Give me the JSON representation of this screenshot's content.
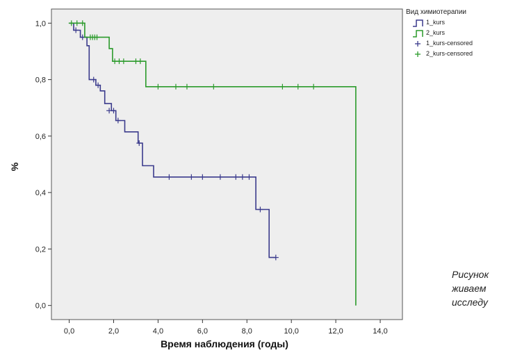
{
  "chart_data": {
    "type": "line",
    "subtype": "kaplan-meier-step",
    "title": "",
    "xlabel": "Время наблюдения (годы)",
    "ylabel": "%",
    "xlim": [
      -0.8,
      15.0
    ],
    "ylim": [
      -0.05,
      1.05
    ],
    "xticks": [
      0.0,
      2.0,
      4.0,
      6.0,
      8.0,
      10.0,
      12.0,
      14.0
    ],
    "xtick_labels": [
      "0,0",
      "2,0",
      "4,0",
      "6,0",
      "8,0",
      "10,0",
      "12,0",
      "14,0"
    ],
    "yticks": [
      0.0,
      0.2,
      0.4,
      0.6,
      0.8,
      1.0
    ],
    "ytick_labels": [
      "0,0",
      "0,2",
      "0,4",
      "0,6",
      "0,8",
      "1,0"
    ],
    "grid": false,
    "background": "#eeeeee",
    "legend": {
      "title": "Вид химиотерапии",
      "position": "top-right",
      "entries": [
        {
          "label": "1_kurs",
          "symbol": "step",
          "color": "#3a3a8c"
        },
        {
          "label": "2_kurs",
          "symbol": "step",
          "color": "#2a9a2a"
        },
        {
          "label": "1_kurs-censored",
          "symbol": "plus",
          "color": "#3a3a8c"
        },
        {
          "label": "2_kurs-censored",
          "symbol": "plus",
          "color": "#2a9a2a"
        }
      ]
    },
    "series": [
      {
        "name": "1_kurs",
        "color": "#3a3a8c",
        "steps": [
          [
            0.0,
            1.0
          ],
          [
            0.2,
            1.0
          ],
          [
            0.2,
            0.975
          ],
          [
            0.5,
            0.975
          ],
          [
            0.5,
            0.95
          ],
          [
            0.8,
            0.95
          ],
          [
            0.8,
            0.92
          ],
          [
            0.9,
            0.92
          ],
          [
            0.9,
            0.8
          ],
          [
            1.2,
            0.8
          ],
          [
            1.2,
            0.78
          ],
          [
            1.4,
            0.78
          ],
          [
            1.4,
            0.76
          ],
          [
            1.6,
            0.76
          ],
          [
            1.6,
            0.715
          ],
          [
            1.9,
            0.715
          ],
          [
            1.9,
            0.69
          ],
          [
            2.1,
            0.69
          ],
          [
            2.1,
            0.655
          ],
          [
            2.5,
            0.655
          ],
          [
            2.5,
            0.615
          ],
          [
            3.1,
            0.615
          ],
          [
            3.1,
            0.575
          ],
          [
            3.3,
            0.575
          ],
          [
            3.3,
            0.495
          ],
          [
            3.8,
            0.495
          ],
          [
            3.8,
            0.455
          ],
          [
            8.4,
            0.455
          ],
          [
            8.4,
            0.34
          ],
          [
            9.0,
            0.34
          ],
          [
            9.0,
            0.17
          ],
          [
            9.3,
            0.17
          ]
        ],
        "censored": [
          [
            0.3,
            0.975
          ],
          [
            0.6,
            0.95
          ],
          [
            1.1,
            0.8
          ],
          [
            1.3,
            0.78
          ],
          [
            1.8,
            0.69
          ],
          [
            2.0,
            0.69
          ],
          [
            2.2,
            0.655
          ],
          [
            3.15,
            0.575
          ],
          [
            4.5,
            0.455
          ],
          [
            5.5,
            0.455
          ],
          [
            6.0,
            0.455
          ],
          [
            6.8,
            0.455
          ],
          [
            7.5,
            0.455
          ],
          [
            7.8,
            0.455
          ],
          [
            8.1,
            0.455
          ],
          [
            8.6,
            0.34
          ],
          [
            9.3,
            0.17
          ]
        ]
      },
      {
        "name": "2_kurs",
        "color": "#2a9a2a",
        "steps": [
          [
            0.0,
            1.0
          ],
          [
            0.7,
            1.0
          ],
          [
            0.7,
            0.95
          ],
          [
            1.8,
            0.95
          ],
          [
            1.8,
            0.91
          ],
          [
            1.95,
            0.91
          ],
          [
            1.95,
            0.865
          ],
          [
            3.45,
            0.865
          ],
          [
            3.45,
            0.775
          ],
          [
            12.9,
            0.775
          ],
          [
            12.9,
            0.0
          ]
        ],
        "censored": [
          [
            0.1,
            1.0
          ],
          [
            0.35,
            1.0
          ],
          [
            0.6,
            1.0
          ],
          [
            0.95,
            0.95
          ],
          [
            1.05,
            0.95
          ],
          [
            1.15,
            0.95
          ],
          [
            1.25,
            0.95
          ],
          [
            2.05,
            0.865
          ],
          [
            2.25,
            0.865
          ],
          [
            2.45,
            0.865
          ],
          [
            3.0,
            0.865
          ],
          [
            3.2,
            0.865
          ],
          [
            4.0,
            0.775
          ],
          [
            4.8,
            0.775
          ],
          [
            5.3,
            0.775
          ],
          [
            6.5,
            0.775
          ],
          [
            9.6,
            0.775
          ],
          [
            10.3,
            0.775
          ],
          [
            11.0,
            0.775
          ]
        ]
      }
    ]
  },
  "caption": {
    "lines": [
      "Рисунок",
      "живаем",
      "исследу"
    ]
  }
}
